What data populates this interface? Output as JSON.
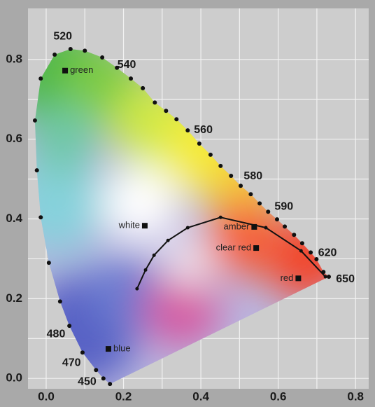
{
  "chart_data": {
    "type": "scatter",
    "xlim": [
      -0.047,
      0.834
    ],
    "ylim": [
      -0.026,
      0.928
    ],
    "xticks": [
      {
        "value": 0,
        "label": "0.0"
      },
      0.2,
      0.4,
      0.6,
      0.8
    ],
    "yticks": [
      {
        "value": 0,
        "label": "0.0"
      },
      0.2,
      0.4,
      0.6,
      0.8
    ],
    "xminor": [
      0.1,
      0.3,
      0.5,
      0.7
    ],
    "yminor": [
      0.1,
      0.3,
      0.5,
      0.7
    ],
    "grid": true,
    "locus": {
      "x": [
        0.165,
        0.148,
        0.129,
        0.094,
        0.06,
        0.036,
        0.007,
        -0.014,
        -0.024,
        -0.029,
        -0.014,
        0.022,
        0.063,
        0.1,
        0.145,
        0.183,
        0.219,
        0.25,
        0.281,
        0.31,
        0.337,
        0.366,
        0.396,
        0.425,
        0.451,
        0.478,
        0.503,
        0.529,
        0.552,
        0.574,
        0.597,
        0.617,
        0.641,
        0.662,
        0.684,
        0.699,
        0.717,
        0.731
      ],
      "y": [
        -0.014,
        0.0,
        0.021,
        0.065,
        0.132,
        0.193,
        0.29,
        0.404,
        0.522,
        0.647,
        0.752,
        0.812,
        0.826,
        0.822,
        0.805,
        0.779,
        0.752,
        0.728,
        0.692,
        0.671,
        0.65,
        0.622,
        0.589,
        0.561,
        0.533,
        0.508,
        0.483,
        0.462,
        0.439,
        0.418,
        0.399,
        0.381,
        0.36,
        0.339,
        0.316,
        0.299,
        0.267,
        0.255
      ],
      "labels": [
        null,
        null,
        450,
        470,
        480,
        null,
        null,
        null,
        null,
        null,
        null,
        null,
        520,
        null,
        null,
        null,
        540,
        null,
        null,
        null,
        null,
        null,
        560,
        null,
        null,
        null,
        580,
        null,
        null,
        590,
        null,
        null,
        null,
        null,
        620,
        null,
        null,
        650
      ],
      "color": "#111111"
    },
    "planckian": {
      "x": [
        0.235,
        0.257,
        0.279,
        0.315,
        0.366,
        0.451,
        0.568,
        0.659,
        0.722
      ],
      "y": [
        0.225,
        0.272,
        0.309,
        0.346,
        0.378,
        0.404,
        0.378,
        0.32,
        0.255
      ],
      "color": "#111111"
    },
    "points": {
      "labels": [
        "green",
        "white",
        "amber",
        "clear red",
        "red",
        "blue"
      ],
      "x": [
        0.049,
        0.255,
        0.538,
        0.543,
        0.652,
        0.161
      ],
      "y": [
        0.772,
        0.383,
        0.38,
        0.327,
        0.251,
        0.074
      ],
      "color": "#111111"
    }
  }
}
